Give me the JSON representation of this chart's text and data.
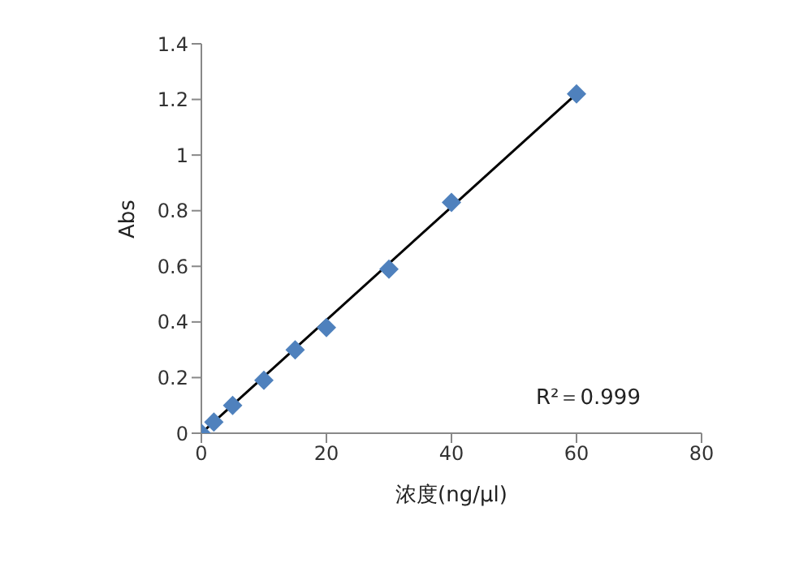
{
  "chart_data": {
    "type": "scatter",
    "xlabel": "浓度(ng/μl)",
    "ylabel": "Abs",
    "xlim": [
      0,
      80
    ],
    "xticks": [
      0,
      20,
      40,
      60,
      80
    ],
    "ylim": [
      0,
      1.4
    ],
    "yticks": [
      0,
      0.2,
      0.4,
      0.6,
      0.8,
      1,
      1.2,
      1.4
    ],
    "grid": false,
    "legend": false,
    "marker": "diamond",
    "series": [
      {
        "color": "#4f81bd",
        "x": [
          0,
          2,
          5,
          10,
          15,
          20,
          30,
          40,
          60
        ],
        "values": [
          0,
          0.04,
          0.1,
          0.19,
          0.3,
          0.38,
          0.59,
          0.83,
          1.22
        ]
      },
      {
        "type": "line",
        "color": "#000000",
        "x": [
          0,
          60
        ],
        "values": [
          0,
          1.22
        ],
        "marker": "none",
        "line_style": "solid"
      }
    ],
    "annotations": [
      "R²＝0.999"
    ]
  }
}
